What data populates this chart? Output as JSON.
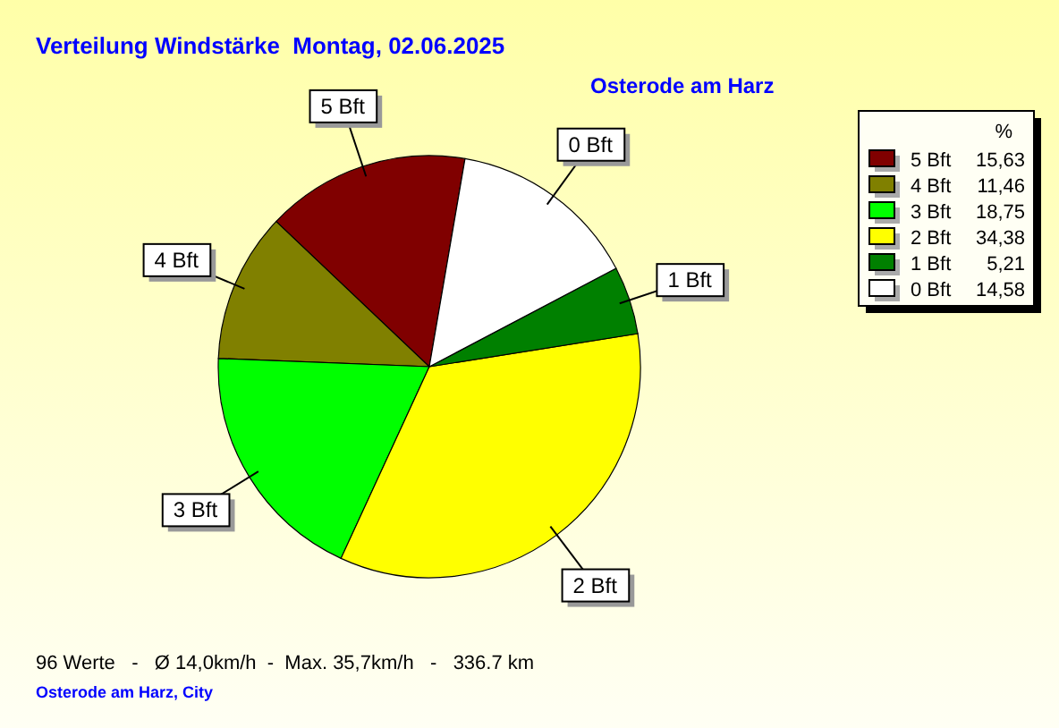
{
  "chart_data": {
    "type": "pie",
    "title": "Verteilung Windstärke  Montag, 02.06.2025",
    "subtitle": "Osterode am Harz",
    "categories": [
      "5 Bft",
      "4 Bft",
      "3 Bft",
      "2 Bft",
      "1 Bft",
      "0 Bft"
    ],
    "values": [
      15.63,
      11.46,
      18.75,
      34.38,
      5.21,
      14.58
    ],
    "value_labels": [
      "15,63",
      "11,46",
      "18,75",
      "34,38",
      "5,21",
      "14,58"
    ],
    "colors": [
      "#800000",
      "#808000",
      "#00ff00",
      "#ffff00",
      "#008000",
      "#ffffff"
    ],
    "legend": "top right",
    "legend_title": "%",
    "annotations": [
      "96 Werte   -   Ø 14,0km/h  -  Max. 35,7km/h   -   336.7 km",
      "Osterode am Harz, City"
    ]
  }
}
